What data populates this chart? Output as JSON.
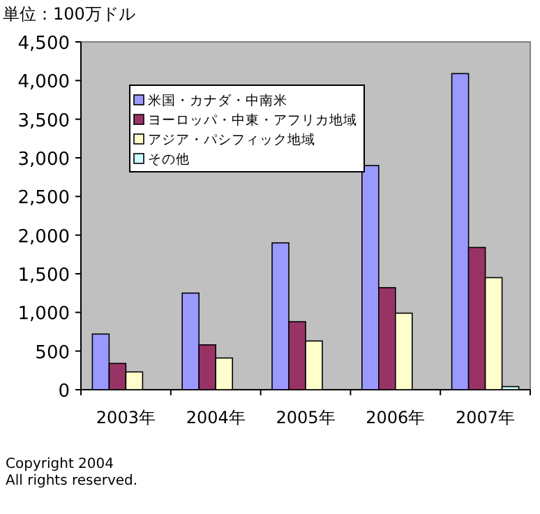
{
  "chart_data": {
    "type": "bar",
    "ylabel": "単位：100万ドル",
    "categories": [
      "2003年",
      "2004年",
      "2005年",
      "2006年",
      "2007年"
    ],
    "series": [
      {
        "name": "米国・カナダ・中南米",
        "color": "#9999ff",
        "values": [
          720,
          1250,
          1900,
          2900,
          4090
        ]
      },
      {
        "name": "ヨーロッパ・中東・アフリカ地域",
        "color": "#993366",
        "values": [
          340,
          580,
          880,
          1320,
          1840
        ]
      },
      {
        "name": "アジア・パシフィック地域",
        "color": "#ffffcc",
        "values": [
          230,
          410,
          630,
          990,
          1450
        ]
      },
      {
        "name": "その他",
        "color": "#ccffff",
        "values": [
          0,
          null,
          null,
          null,
          40
        ]
      }
    ],
    "ylim": [
      0,
      4500
    ],
    "yticks": [
      {
        "value": 0,
        "label": "0"
      },
      {
        "value": 500,
        "label": "500"
      },
      {
        "value": 1000,
        "label": "1,000"
      },
      {
        "value": 1500,
        "label": "1,500"
      },
      {
        "value": 2000,
        "label": "2,000"
      },
      {
        "value": 2500,
        "label": "2,500"
      },
      {
        "value": 3000,
        "label": "3,000"
      },
      {
        "value": 3500,
        "label": "3,500"
      },
      {
        "value": 4000,
        "label": "4,000"
      },
      {
        "value": 4500,
        "label": "4,500"
      }
    ],
    "legend": "top left",
    "annotations": [
      "Copyright 2004",
      "All rights reserved."
    ]
  }
}
